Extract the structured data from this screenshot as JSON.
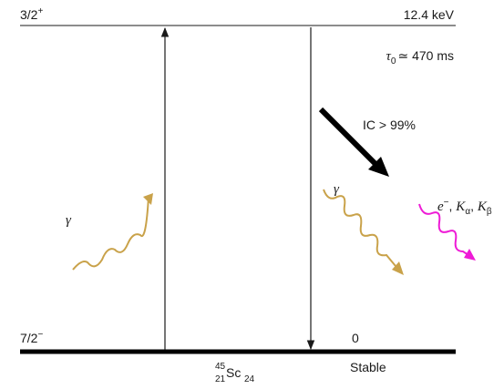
{
  "levels": {
    "upper": {
      "spin_parity_base": "3/2",
      "spin_parity_sign": "+",
      "energy": "12.4 keV",
      "lifetime_symbol": "τ",
      "lifetime_subscript": "0",
      "lifetime_value": "≃ 470 ms"
    },
    "ground": {
      "spin_parity_base": "7/2",
      "spin_parity_sign": "−",
      "energy": "0",
      "stability": "Stable"
    }
  },
  "nucleus": {
    "mass_number": "45",
    "atomic_number": "21",
    "symbol": "Sc",
    "neutron_number": "24"
  },
  "transitions": {
    "internal_conversion": "IC > 99%",
    "gamma_absorption_label": "γ",
    "gamma_emission_label": "γ",
    "conversion_products": {
      "electron": "e",
      "electron_charge": "−",
      "k_symbol": "K",
      "k_alpha": "α",
      "k_beta": "β",
      "separator": ", "
    }
  },
  "colors": {
    "level_line": "#1a1a1a",
    "gamma": "#c9a24a",
    "conversion": "#ee1bd6",
    "ic_arrow": "#000000"
  }
}
